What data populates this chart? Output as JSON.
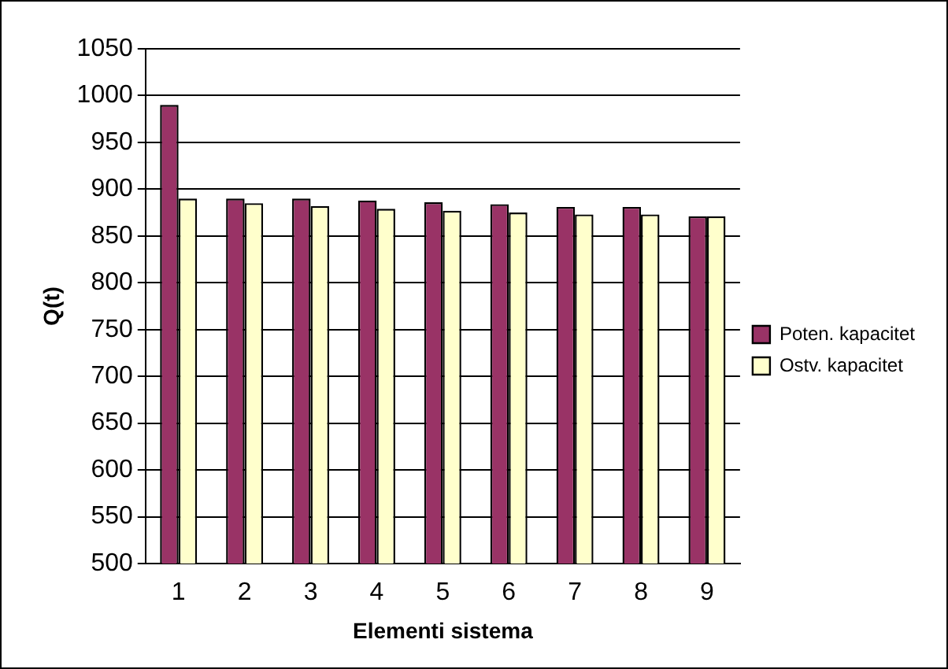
{
  "chart_data": {
    "type": "bar",
    "xlabel": "Elementi sistema",
    "ylabel": "Q(t)",
    "categories": [
      "1",
      "2",
      "3",
      "4",
      "5",
      "6",
      "7",
      "8",
      "9"
    ],
    "series": [
      {
        "name": "Poten. kapacitet",
        "color": "#993366",
        "values": [
          990,
          890,
          890,
          888,
          886,
          884,
          881,
          881,
          871
        ]
      },
      {
        "name": "Ostv. kapacitet",
        "color": "#ffffcc",
        "values": [
          890,
          885,
          882,
          879,
          877,
          875,
          873,
          873,
          871
        ]
      }
    ],
    "ylim": [
      500,
      1050
    ],
    "yticks": [
      500,
      550,
      600,
      650,
      700,
      750,
      800,
      850,
      900,
      950,
      1000,
      1050
    ],
    "grid": "y",
    "legend": "right"
  }
}
